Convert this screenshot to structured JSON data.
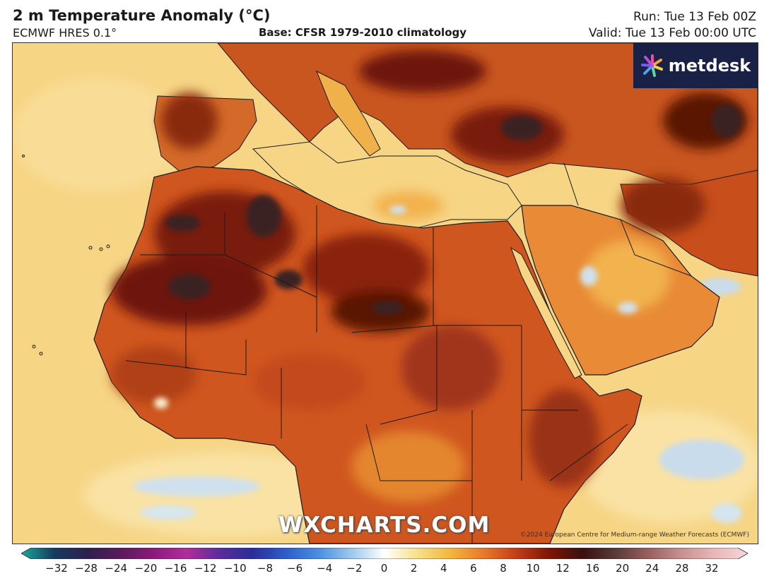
{
  "header": {
    "title": "2 m Temperature Anomaly (°C)",
    "model": "ECMWF HRES 0.1°",
    "base": "Base: CFSR 1979-2010 climatology",
    "run": "Run: Tue 13 Feb 00Z",
    "valid": "Valid: Tue 13 Feb 00:00 UTC"
  },
  "branding": {
    "logo": "metdesk",
    "watermark": "WXCHARTS.COM",
    "copyright": "©2024 European Centre for Medium-range Weather Forecasts (ECMWF)"
  },
  "colorbar": {
    "ticks": [
      "−32",
      "−28",
      "−24",
      "−20",
      "−16",
      "−12",
      "−10",
      "−8",
      "−6",
      "−4",
      "−2",
      "0",
      "2",
      "4",
      "6",
      "8",
      "10",
      "12",
      "16",
      "20",
      "24",
      "28",
      "32"
    ],
    "colors": [
      "#1aa89a",
      "#173a5e",
      "#2e1f4d",
      "#5a1a5a",
      "#8a1a7a",
      "#b02d9a",
      "#5a2d9a",
      "#2a2d9a",
      "#2e5cc8",
      "#4a8ee0",
      "#9fc8ec",
      "#ffffff",
      "#f6e08a",
      "#f2b640",
      "#e8792a",
      "#c23d18",
      "#7a1606",
      "#3a1010",
      "#5a3a3a",
      "#9a6060",
      "#c89090",
      "#e8b8b8",
      "#f6d6dc"
    ]
  },
  "map_layers": {
    "ocean": "#f6d585",
    "land_warm": "#ec9a3e",
    "land_hot": "#c44a1c",
    "land_extreme": "#6e1808",
    "cold_spot": "#c9dcec",
    "border": "#1a1a1a"
  }
}
